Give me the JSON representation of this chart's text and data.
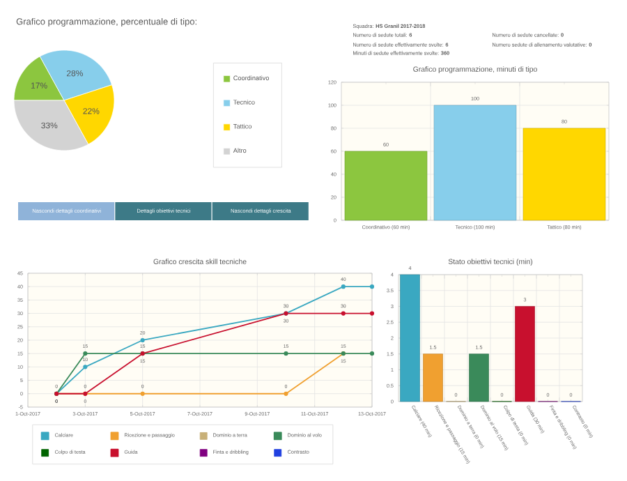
{
  "chart_data": [
    {
      "type": "pie",
      "title": "Grafico programmazione, percentuale di tipo:",
      "categories": [
        "Coordinativo",
        "Tecnico",
        "Tattico",
        "Altro"
      ],
      "values": [
        17,
        28,
        22,
        33
      ],
      "value_labels": [
        "17%",
        "28%",
        "22%",
        "33%"
      ],
      "colors": [
        "#8cc63f",
        "#87ceeb",
        "#ffd700",
        "#d3d3d3"
      ],
      "legend": "right"
    },
    {
      "type": "other",
      "annotations": [
        "Squadra: **HS Granil 2017-2018**",
        "Numero di sedute totali: **6**",
        "Numero di sedute effettivamente svolte: **6**",
        "Minuti di sedute effettivamente svolte: **360**",
        "Numero di sedute cancellate: **0**",
        "Numero sedute di allenamento valutative: **0**"
      ]
    },
    {
      "type": "bar",
      "title": "Grafico programmazione, minuti di tipo",
      "categories": [
        "Coordinativo (60 min)",
        "Tecnico (100 min)",
        "Tattico (80 min)"
      ],
      "values": [
        60,
        100,
        80
      ],
      "colors": [
        "#8cc63f",
        "#87ceeb",
        "#ffd700"
      ],
      "ylim": [
        0,
        120
      ],
      "yticks": [
        0,
        20,
        40,
        60,
        80,
        100,
        120
      ],
      "data_labels": true,
      "grid": true
    },
    {
      "type": "other",
      "annotations": [
        "Nascondi dettagli coordinativi",
        "Dettagli obiettivi tecnici",
        "Nascondi dettagli crescita"
      ],
      "colors": [
        "#8fb3d9",
        "#3d7a87",
        "#3d7a87"
      ]
    },
    {
      "type": "line",
      "title": "Grafico crescita skill tecniche",
      "x": [
        "2017-10-02",
        "2017-10-03",
        "2017-10-05",
        "2017-10-10",
        "2017-10-12",
        "2017-10-13"
      ],
      "series": [
        {
          "name": "Calciare",
          "color": "#3aa8c1",
          "values": [
            0,
            10,
            20,
            30,
            40,
            40
          ],
          "value_labels": [
            "0",
            "10",
            "20",
            "30",
            "40",
            null
          ]
        },
        {
          "name": "Ricezione e passaggio",
          "color": "#f0a030",
          "values": [
            0,
            0,
            0,
            0,
            15,
            null
          ],
          "value_labels": [
            "0",
            "0",
            "0",
            "0",
            "15",
            null
          ]
        },
        {
          "name": "Dominio a terra",
          "color": "#c8b078",
          "values": [
            null,
            null,
            null,
            null,
            null,
            null
          ]
        },
        {
          "name": "Dominio al volo",
          "color": "#3a8a5a",
          "values": [
            0,
            15,
            15,
            15,
            15,
            15
          ],
          "value_labels": [
            "0",
            "15",
            "15",
            "15",
            "15",
            null
          ]
        },
        {
          "name": "Colpo di testa",
          "color": "#006400",
          "values": [
            null,
            null,
            null,
            null,
            null,
            null
          ]
        },
        {
          "name": "Guida",
          "color": "#c8102e",
          "values": [
            0,
            0,
            15,
            30,
            30,
            30
          ],
          "value_labels": [
            "0",
            "0",
            "15",
            "30",
            "30",
            null
          ]
        },
        {
          "name": "Finta e dribbling",
          "color": "#800080",
          "values": [
            null,
            null,
            null,
            null,
            null,
            null
          ]
        },
        {
          "name": "Contrasto",
          "color": "#2040e0",
          "values": [
            null,
            null,
            null,
            null,
            null,
            null
          ]
        }
      ],
      "xlim": [
        "2017-10-01",
        "2017-10-13"
      ],
      "xticks": [
        {
          "value": "2017-10-01",
          "label": "1-Oct-2017"
        },
        {
          "value": "2017-10-03",
          "label": "3-Oct-2017"
        },
        {
          "value": "2017-10-05",
          "label": "5-Oct-2017"
        },
        {
          "value": "2017-10-07",
          "label": "7-Oct-2017"
        },
        {
          "value": "2017-10-09",
          "label": "9-Oct-2017"
        },
        {
          "value": "2017-10-11",
          "label": "11-Oct-2017"
        },
        {
          "value": "2017-10-13",
          "label": "13-Oct-2017"
        }
      ],
      "ylim": [
        -5,
        45
      ],
      "yticks": [
        -5,
        0,
        5,
        10,
        15,
        20,
        25,
        30,
        35,
        40,
        45
      ],
      "grid": true,
      "legend": "bottom",
      "marker": "circle"
    },
    {
      "type": "bar",
      "title": "Stato obiettivi tecnici (min)",
      "categories": [
        "Calciare (40 min)",
        "Ricezione e passaggio (15 min)",
        "Dominio a terra (0 min)",
        "Dominio al volo (15 min)",
        "Colpo di testa (0 min)",
        "Guida (30 min)",
        "Finta e dribbling (0 min)",
        "Contrasto (0 min)"
      ],
      "values": [
        4,
        1.5,
        0,
        1.5,
        0,
        3,
        0,
        0
      ],
      "colors": [
        "#3aa8c1",
        "#f0a030",
        "#c8b078",
        "#3a8a5a",
        "#006400",
        "#c8102e",
        "#800080",
        "#2040e0"
      ],
      "ylim": [
        0,
        4
      ],
      "yticks": [
        0,
        0.5,
        1,
        1.5,
        2,
        2.5,
        3,
        3.5,
        4
      ],
      "data_labels": true,
      "grid": true
    }
  ]
}
